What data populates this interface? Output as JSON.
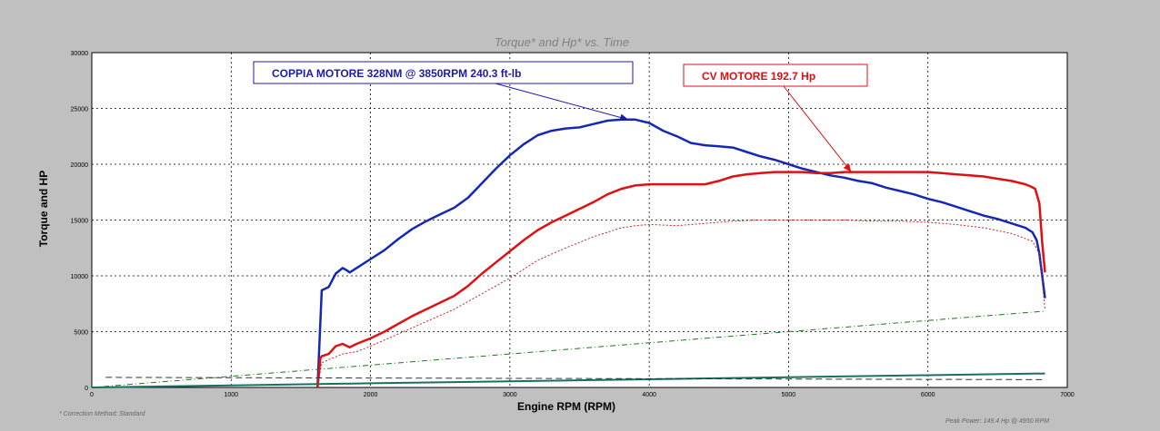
{
  "chart_data": {
    "type": "line",
    "title": "Torque* and Hp* vs. Time",
    "xlabel": "Engine RPM (RPM)",
    "ylabel": "Torque and HP",
    "xlim": [
      0,
      7000
    ],
    "ylim": [
      0,
      30000
    ],
    "x_ticks": [
      "0",
      "1000",
      "2000",
      "3000",
      "4000",
      "5000",
      "6000",
      "7000"
    ],
    "y_ticks": [
      "0",
      "5000",
      "10000",
      "15000",
      "20000",
      "25000",
      "30000"
    ],
    "grid": true,
    "footnote_left": "* Correction Method: Standard",
    "footnote_right": "Peak Power: 149.4 Hp @ 4950 RPM",
    "annotations": [
      {
        "text": "COPPIA MOTORE 328NM @ 3850RPM 240.3 ft-lb",
        "color": "#1a1ab0",
        "target": [
          3850,
          24000
        ]
      },
      {
        "text": "CV MOTORE 192.7 Hp",
        "color": "#e01010",
        "target": [
          5450,
          19300
        ]
      }
    ],
    "series": [
      {
        "color": "#1428b4",
        "style": "solid",
        "width": 2.5,
        "x": [
          1620,
          1630,
          1650,
          1700,
          1750,
          1800,
          1830,
          1850,
          1900,
          2000,
          2100,
          2200,
          2300,
          2400,
          2500,
          2600,
          2700,
          2800,
          2900,
          3000,
          3100,
          3200,
          3300,
          3400,
          3500,
          3600,
          3700,
          3800,
          3850,
          3900,
          4000,
          4100,
          4200,
          4300,
          4400,
          4500,
          4600,
          4700,
          4800,
          4900,
          5000,
          5100,
          5200,
          5300,
          5400,
          5500,
          5600,
          5700,
          5800,
          5900,
          6000,
          6100,
          6200,
          6300,
          6400,
          6500,
          6600,
          6700,
          6750,
          6780,
          6800,
          6820,
          6840
        ],
        "y": [
          0,
          3000,
          8700,
          9000,
          10200,
          10700,
          10500,
          10300,
          10700,
          11500,
          12300,
          13300,
          14200,
          14900,
          15500,
          16100,
          17000,
          18300,
          19600,
          20800,
          21800,
          22600,
          23000,
          23200,
          23300,
          23600,
          23900,
          24000,
          24000,
          24000,
          23700,
          23000,
          22500,
          21900,
          21700,
          21600,
          21500,
          21100,
          20700,
          20400,
          20000,
          19600,
          19300,
          19000,
          18800,
          18500,
          18300,
          17900,
          17600,
          17300,
          16900,
          16600,
          16200,
          15800,
          15400,
          15100,
          14700,
          14300,
          13900,
          13200,
          12000,
          10000,
          8000
        ]
      },
      {
        "color": "#e01010",
        "style": "solid",
        "width": 2.5,
        "x": [
          1620,
          1640,
          1650,
          1700,
          1750,
          1800,
          1850,
          1900,
          2000,
          2100,
          2200,
          2300,
          2400,
          2500,
          2600,
          2700,
          2800,
          2900,
          3000,
          3100,
          3200,
          3300,
          3400,
          3500,
          3600,
          3700,
          3800,
          3900,
          4000,
          4100,
          4200,
          4300,
          4400,
          4500,
          4600,
          4700,
          4800,
          4900,
          5000,
          5100,
          5200,
          5300,
          5400,
          5500,
          5600,
          5700,
          5800,
          5900,
          6000,
          6100,
          6200,
          6300,
          6400,
          6500,
          6600,
          6700,
          6740,
          6770,
          6800,
          6820,
          6840
        ],
        "y": [
          0,
          2600,
          2800,
          3000,
          3700,
          3900,
          3600,
          3900,
          4400,
          5000,
          5700,
          6400,
          7000,
          7600,
          8200,
          9100,
          10200,
          11200,
          12200,
          13200,
          14100,
          14800,
          15400,
          16000,
          16600,
          17300,
          17800,
          18100,
          18200,
          18200,
          18200,
          18200,
          18200,
          18500,
          18900,
          19100,
          19200,
          19300,
          19300,
          19300,
          19200,
          19200,
          19300,
          19300,
          19300,
          19300,
          19300,
          19300,
          19300,
          19200,
          19100,
          19000,
          18900,
          18700,
          18500,
          18200,
          18000,
          17800,
          16500,
          13000,
          10300
        ]
      },
      {
        "color": "#c82020",
        "style": "dotted",
        "width": 1,
        "x": [
          1620,
          1650,
          1700,
          1800,
          1900,
          2000,
          2200,
          2400,
          2600,
          2800,
          3000,
          3200,
          3400,
          3600,
          3800,
          3900,
          4000,
          4200,
          4400,
          4600,
          4800,
          5000,
          5200,
          5400,
          5600,
          5800,
          6000,
          6200,
          6400,
          6600,
          6750,
          6800,
          6840
        ],
        "y": [
          0,
          2200,
          2500,
          3000,
          3200,
          3700,
          4800,
          5900,
          7000,
          8400,
          9800,
          11400,
          12500,
          13500,
          14300,
          14500,
          14600,
          14500,
          14700,
          14900,
          15000,
          15000,
          15000,
          15000,
          14900,
          14900,
          14800,
          14600,
          14300,
          13800,
          13100,
          12000,
          7000
        ]
      },
      {
        "color": "#1a7a1a",
        "style": "dashdot",
        "width": 1,
        "x": [
          0,
          1000,
          2000,
          3000,
          4000,
          5000,
          6000,
          6840
        ],
        "y": [
          0,
          1000,
          2000,
          3000,
          4000,
          5000,
          6000,
          6840
        ]
      },
      {
        "color": "#1a7060",
        "style": "solid",
        "width": 2,
        "x": [
          0,
          1000,
          2000,
          3000,
          4000,
          5000,
          6000,
          6840
        ],
        "y": [
          0,
          180,
          370,
          550,
          730,
          920,
          1100,
          1250
        ]
      },
      {
        "color": "#333333",
        "style": "dashed",
        "width": 1,
        "x": [
          100,
          6840
        ],
        "y": [
          900,
          700
        ]
      }
    ]
  }
}
